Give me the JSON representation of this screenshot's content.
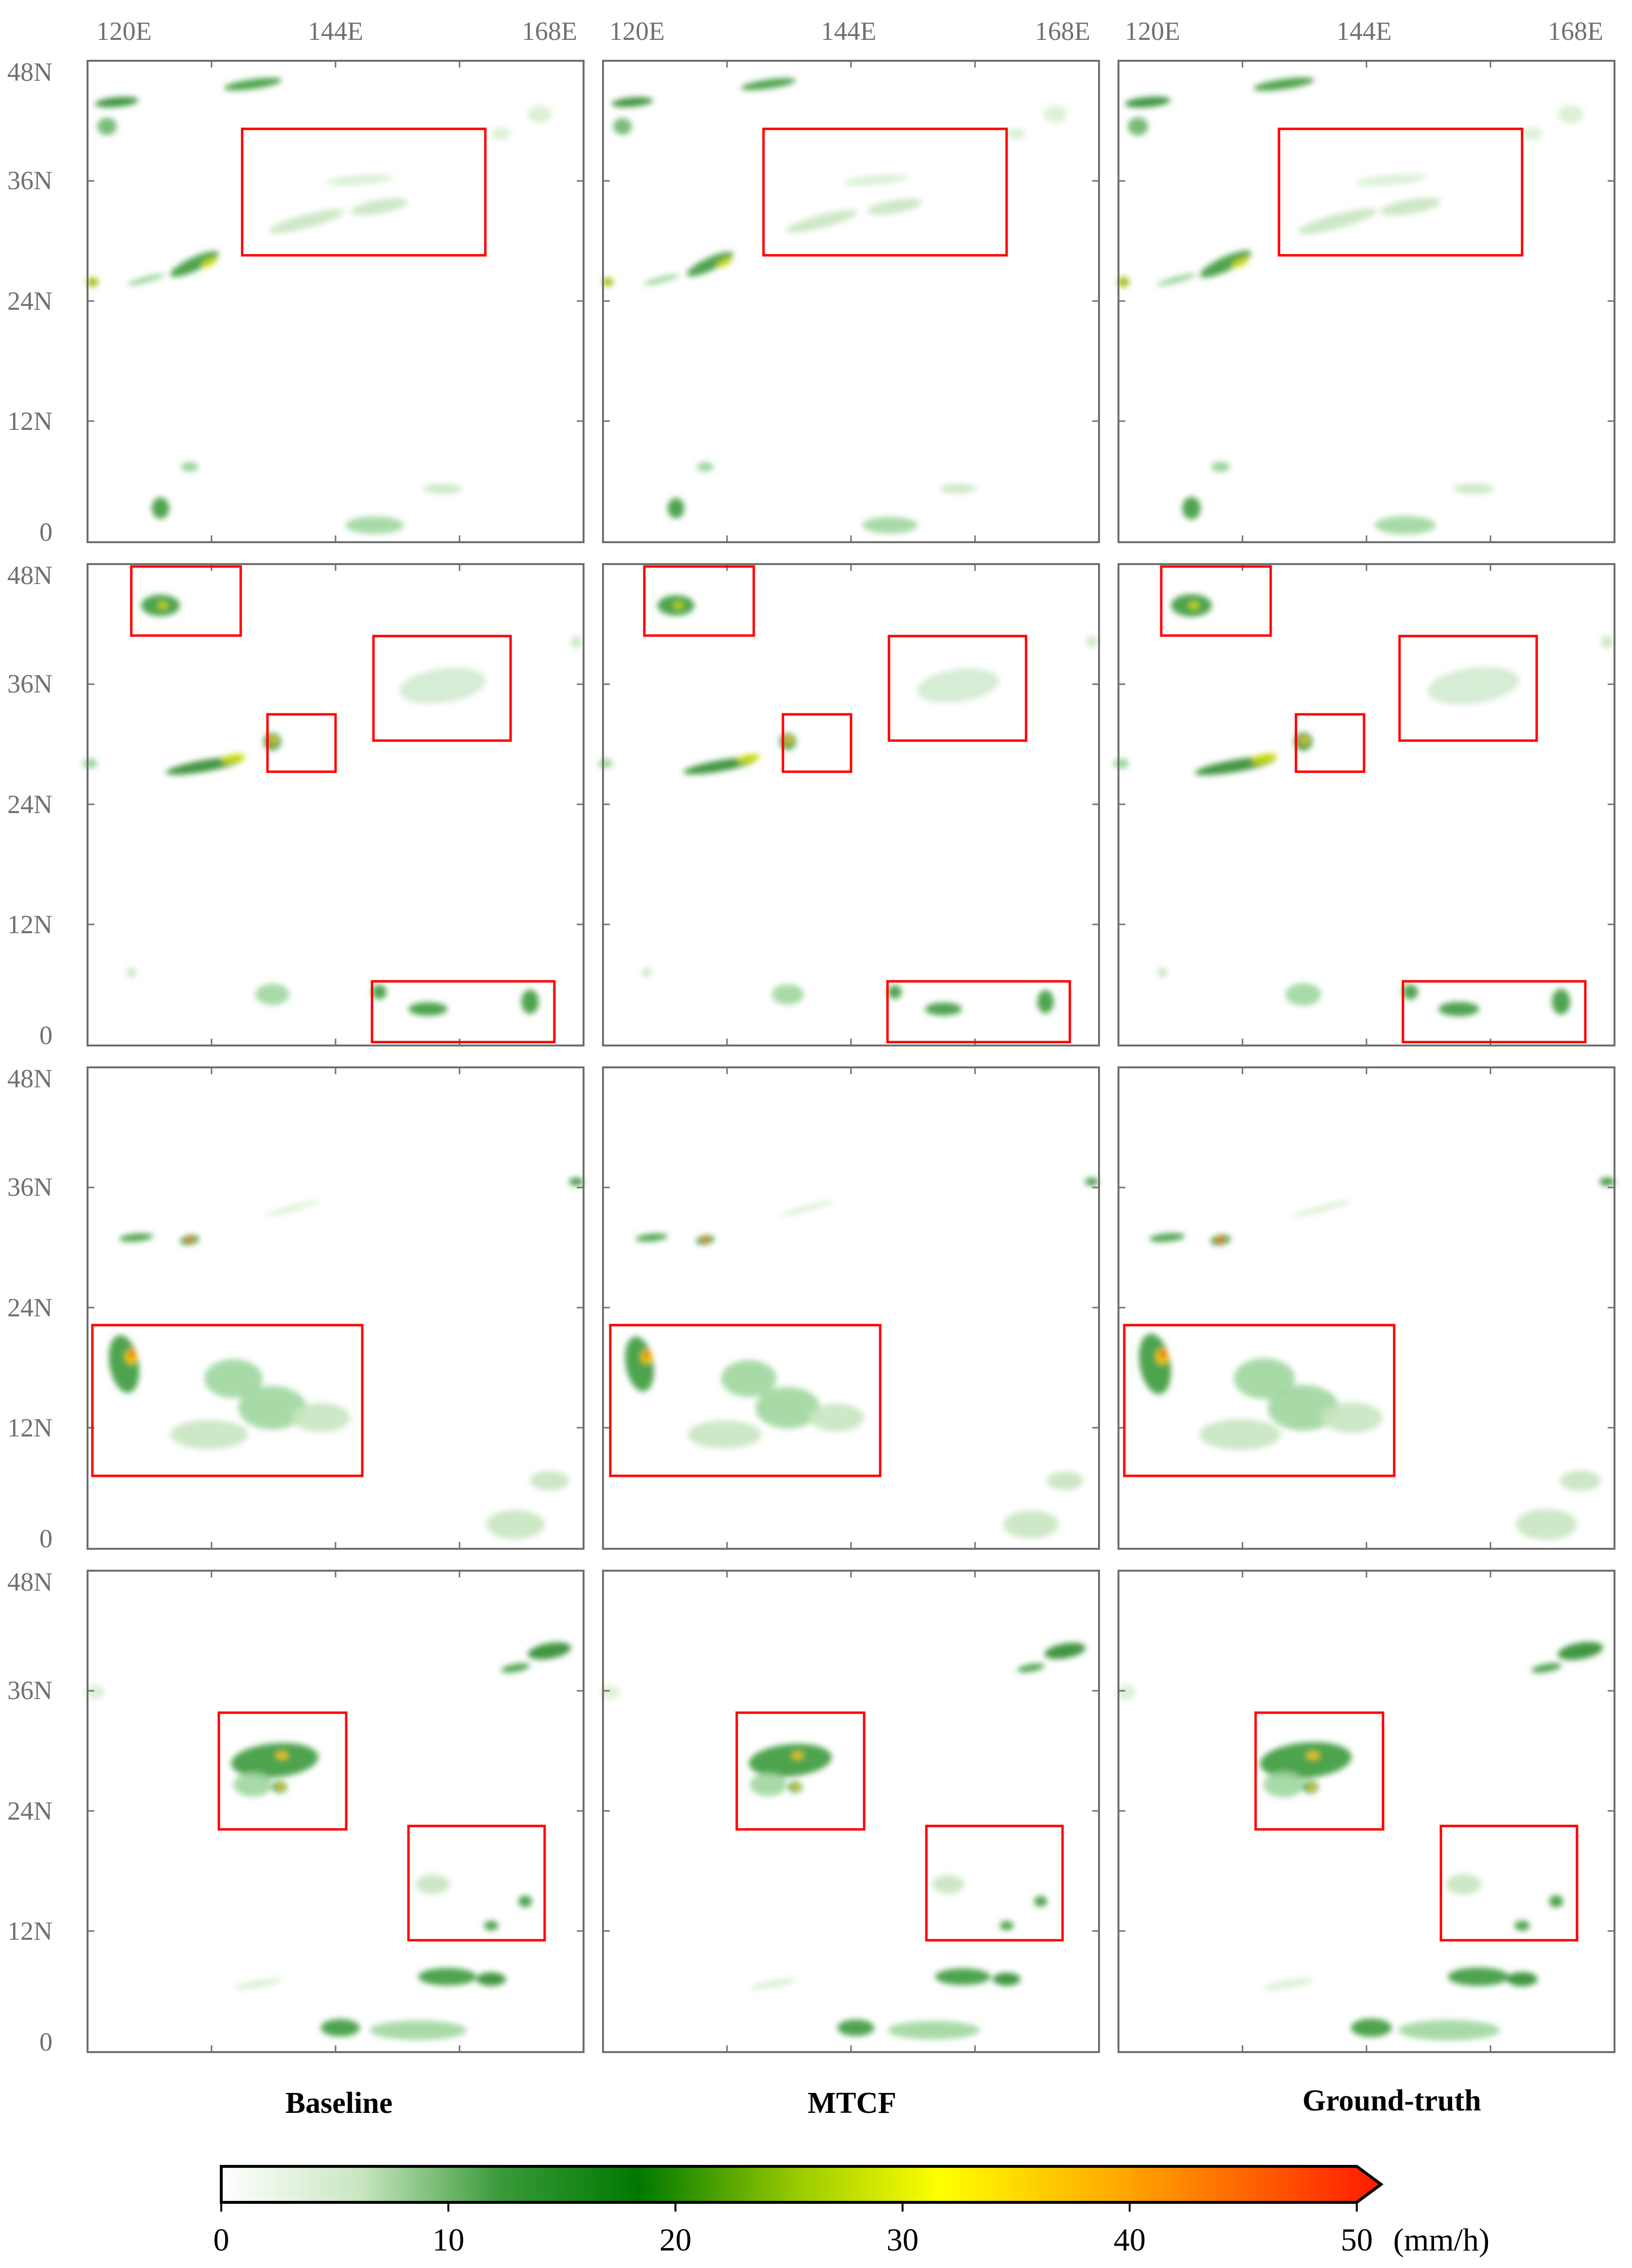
{
  "axes": {
    "lon_ticks": [
      "120E",
      "144E",
      "168E"
    ],
    "lat_ticks": [
      "48N",
      "36N",
      "24N",
      "12N",
      "0"
    ]
  },
  "columns": [
    {
      "title": "Baseline"
    },
    {
      "title": "MTCF"
    },
    {
      "title": "Ground-truth"
    }
  ],
  "colorbar": {
    "ticks": [
      "0",
      "10",
      "20",
      "30",
      "40",
      "50"
    ],
    "unit": "(mm/h)",
    "colors": [
      "#ffffff",
      "#c8e6c0",
      "#3a9a3a",
      "#007800",
      "#9ccc00",
      "#ffff00",
      "#ff9a00",
      "#ff1a00"
    ],
    "box_color": "#ff0000"
  }
}
